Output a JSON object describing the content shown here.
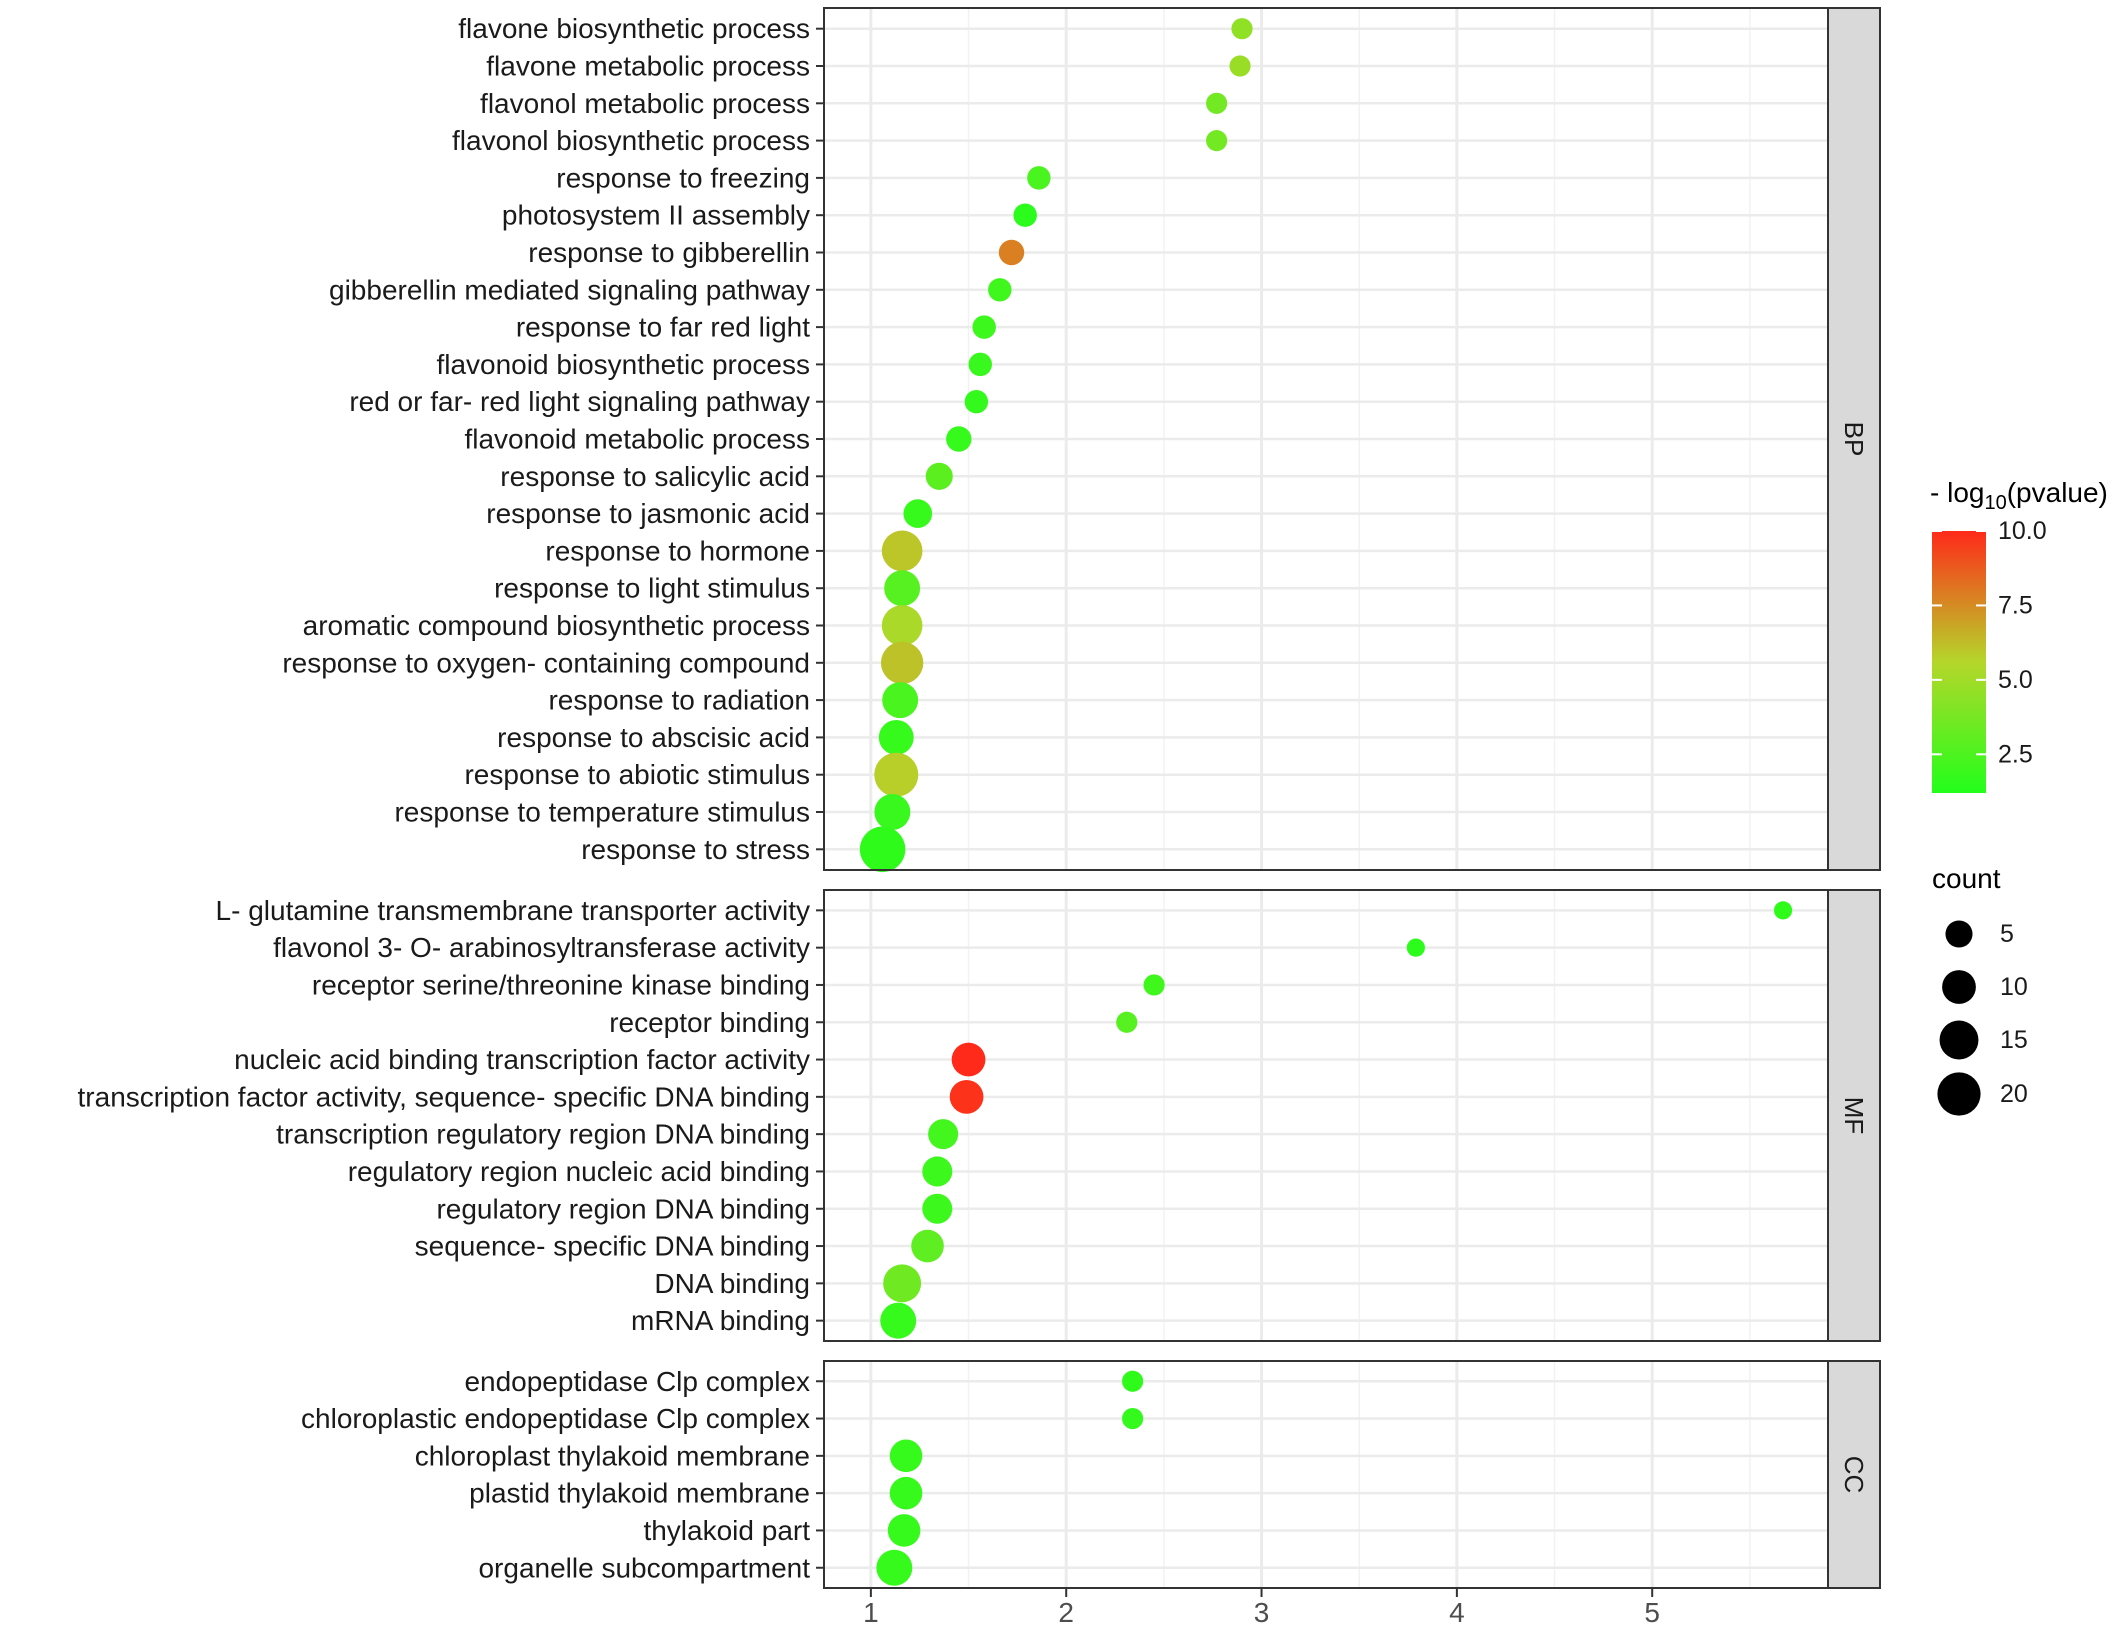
{
  "chart_data": {
    "type": "scatter",
    "subtype": "faceted dot plot (GO enrichment)",
    "x_axis": {
      "label": "",
      "ticks": [
        1,
        2,
        3,
        4,
        5
      ],
      "range": [
        0.76,
        5.9
      ],
      "grid": true
    },
    "legend": {
      "placement": "right",
      "color_title_prefix": "- log",
      "color_title_sub": "10",
      "color_title_suffix": "(pvalue)",
      "color_scale": {
        "low_color": "#22FF1A",
        "high_color": "#FF2A1A",
        "min": 1.2,
        "max": 10.0
      },
      "color_ticks": [
        2.5,
        5.0,
        7.5,
        10.0
      ],
      "color_tick_labels": [
        "2.5",
        "5.0",
        "7.5",
        "10.0"
      ],
      "size_title": "count",
      "size_values": [
        5,
        10,
        15,
        20
      ],
      "size_labels": [
        "5",
        "10",
        "15",
        "20"
      ]
    },
    "facets": [
      {
        "name": "BP",
        "terms": [
          {
            "label": "flavone biosynthetic process",
            "x": 2.9,
            "neglog10p": 4.5,
            "count": 2
          },
          {
            "label": "flavone metabolic process",
            "x": 2.89,
            "neglog10p": 4.8,
            "count": 2
          },
          {
            "label": "flavonol metabolic process",
            "x": 2.77,
            "neglog10p": 3.6,
            "count": 2
          },
          {
            "label": "flavonol biosynthetic process",
            "x": 2.77,
            "neglog10p": 3.6,
            "count": 2
          },
          {
            "label": "response to freezing",
            "x": 1.86,
            "neglog10p": 2.4,
            "count": 3
          },
          {
            "label": "photosystem II assembly",
            "x": 1.79,
            "neglog10p": 1.5,
            "count": 3
          },
          {
            "label": "response to gibberellin",
            "x": 1.72,
            "neglog10p": 7.8,
            "count": 4
          },
          {
            "label": "gibberellin mediated signaling pathway",
            "x": 1.66,
            "neglog10p": 2.1,
            "count": 3
          },
          {
            "label": "response to far red light",
            "x": 1.58,
            "neglog10p": 2.0,
            "count": 3
          },
          {
            "label": "flavonoid biosynthetic process",
            "x": 1.56,
            "neglog10p": 1.9,
            "count": 3
          },
          {
            "label": "red or far- red light signaling pathway",
            "x": 1.54,
            "neglog10p": 1.7,
            "count": 3
          },
          {
            "label": "flavonoid metabolic process",
            "x": 1.45,
            "neglog10p": 1.8,
            "count": 4
          },
          {
            "label": "response to salicylic acid",
            "x": 1.35,
            "neglog10p": 2.9,
            "count": 5
          },
          {
            "label": "response to jasmonic acid",
            "x": 1.24,
            "neglog10p": 1.8,
            "count": 6
          },
          {
            "label": "response to hormone",
            "x": 1.16,
            "neglog10p": 6.0,
            "count": 17
          },
          {
            "label": "response to light stimulus",
            "x": 1.16,
            "neglog10p": 2.8,
            "count": 12
          },
          {
            "label": "aromatic compound biosynthetic process",
            "x": 1.16,
            "neglog10p": 5.3,
            "count": 17
          },
          {
            "label": "response to oxygen- containing compound",
            "x": 1.16,
            "neglog10p": 6.1,
            "count": 19
          },
          {
            "label": "response to radiation",
            "x": 1.15,
            "neglog10p": 2.4,
            "count": 12
          },
          {
            "label": "response to abscisic acid",
            "x": 1.13,
            "neglog10p": 1.8,
            "count": 11
          },
          {
            "label": "response to abiotic stimulus",
            "x": 1.13,
            "neglog10p": 5.8,
            "count": 21
          },
          {
            "label": "response to temperature stimulus",
            "x": 1.11,
            "neglog10p": 1.9,
            "count": 12
          },
          {
            "label": "response to stress",
            "x": 1.06,
            "neglog10p": 1.6,
            "count": 23
          }
        ]
      },
      {
        "name": "MF",
        "terms": [
          {
            "label": "L- glutamine transmembrane transporter activity",
            "x": 5.67,
            "neglog10p": 1.6,
            "count": 1
          },
          {
            "label": "flavonol 3- O- arabinosyltransferase activity",
            "x": 3.79,
            "neglog10p": 1.5,
            "count": 1
          },
          {
            "label": "receptor serine/threonine kinase binding",
            "x": 2.45,
            "neglog10p": 2.1,
            "count": 2
          },
          {
            "label": "receptor binding",
            "x": 2.31,
            "neglog10p": 2.8,
            "count": 2
          },
          {
            "label": "nucleic acid binding transcription factor activity",
            "x": 1.5,
            "neglog10p": 10.0,
            "count": 10
          },
          {
            "label": "transcription factor activity, sequence- specific DNA binding",
            "x": 1.49,
            "neglog10p": 9.8,
            "count": 10
          },
          {
            "label": "transcription regulatory region DNA binding",
            "x": 1.37,
            "neglog10p": 2.2,
            "count": 7
          },
          {
            "label": "regulatory region nucleic acid binding",
            "x": 1.34,
            "neglog10p": 2.0,
            "count": 7
          },
          {
            "label": "regulatory region DNA binding",
            "x": 1.34,
            "neglog10p": 2.0,
            "count": 7
          },
          {
            "label": "sequence- specific DNA binding",
            "x": 1.29,
            "neglog10p": 3.0,
            "count": 9
          },
          {
            "label": "DNA binding",
            "x": 1.16,
            "neglog10p": 3.5,
            "count": 14
          },
          {
            "label": "mRNA binding",
            "x": 1.14,
            "neglog10p": 1.8,
            "count": 12
          }
        ]
      },
      {
        "name": "CC",
        "terms": [
          {
            "label": "endopeptidase Clp complex",
            "x": 2.34,
            "neglog10p": 1.6,
            "count": 2
          },
          {
            "label": "chloroplastic endopeptidase Clp complex",
            "x": 2.34,
            "neglog10p": 1.7,
            "count": 2
          },
          {
            "label": "chloroplast thylakoid membrane",
            "x": 1.18,
            "neglog10p": 1.8,
            "count": 9
          },
          {
            "label": "plastid thylakoid membrane",
            "x": 1.18,
            "neglog10p": 1.8,
            "count": 9
          },
          {
            "label": "thylakoid part",
            "x": 1.17,
            "neglog10p": 1.8,
            "count": 9
          },
          {
            "label": "organelle subcompartment",
            "x": 1.12,
            "neglog10p": 1.8,
            "count": 12
          }
        ]
      }
    ]
  }
}
